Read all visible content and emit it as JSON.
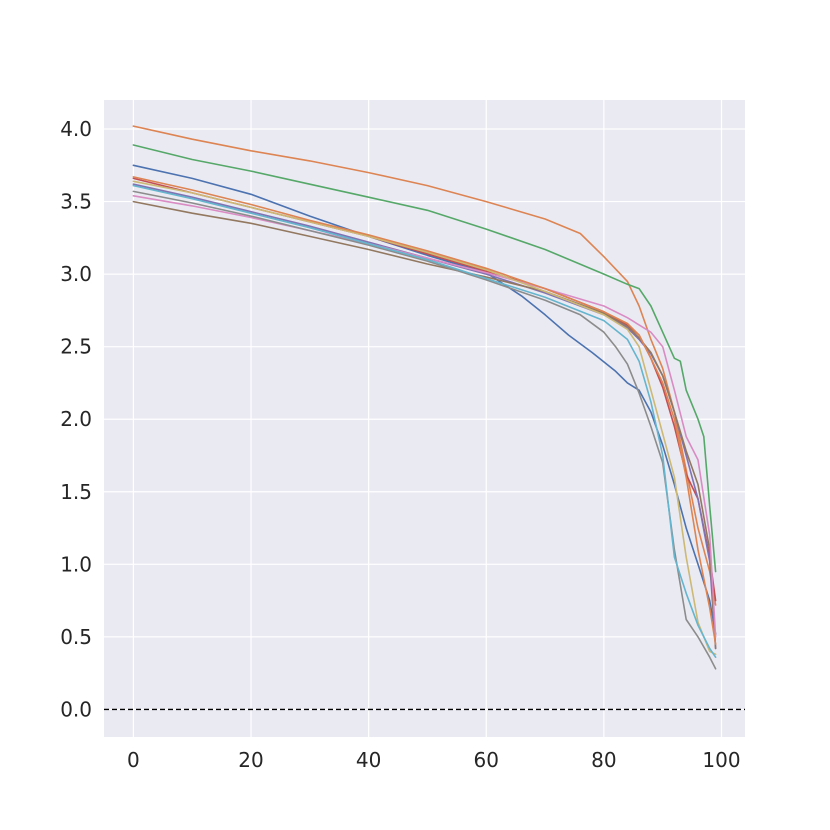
{
  "chart_data": {
    "type": "line",
    "title": "",
    "xlabel": "",
    "ylabel": "",
    "xlim": [
      -5,
      104
    ],
    "ylim": [
      -0.19,
      4.2
    ],
    "xticks": [
      0,
      20,
      40,
      60,
      80,
      100
    ],
    "yticks": [
      0.0,
      0.5,
      1.0,
      1.5,
      2.0,
      2.5,
      3.0,
      3.5,
      4.0
    ],
    "xtick_labels": [
      "0",
      "20",
      "40",
      "60",
      "80",
      "100"
    ],
    "ytick_labels": [
      "0.0",
      "0.5",
      "1.0",
      "1.5",
      "2.0",
      "2.5",
      "3.0",
      "3.5",
      "4.0"
    ],
    "grid": true,
    "background_color": "#eaeaf2",
    "reference_line": {
      "y": 0.0,
      "style": "dashed",
      "color": "#000000"
    },
    "series": [
      {
        "color": "#dd8452",
        "points": [
          [
            0,
            4.02
          ],
          [
            10,
            3.93
          ],
          [
            20,
            3.85
          ],
          [
            30,
            3.78
          ],
          [
            40,
            3.7
          ],
          [
            50,
            3.61
          ],
          [
            60,
            3.5
          ],
          [
            70,
            3.38
          ],
          [
            76,
            3.28
          ],
          [
            80,
            3.12
          ],
          [
            84,
            2.95
          ],
          [
            86,
            2.78
          ],
          [
            88,
            2.55
          ],
          [
            90,
            2.35
          ],
          [
            92,
            2.05
          ],
          [
            94,
            1.65
          ],
          [
            96,
            1.25
          ],
          [
            98,
            0.95
          ],
          [
            99,
            0.72
          ]
        ]
      },
      {
        "color": "#55a868",
        "points": [
          [
            0,
            3.89
          ],
          [
            10,
            3.79
          ],
          [
            20,
            3.71
          ],
          [
            30,
            3.62
          ],
          [
            40,
            3.53
          ],
          [
            50,
            3.44
          ],
          [
            60,
            3.31
          ],
          [
            70,
            3.17
          ],
          [
            80,
            3.0
          ],
          [
            84,
            2.93
          ],
          [
            86,
            2.9
          ],
          [
            88,
            2.78
          ],
          [
            90,
            2.6
          ],
          [
            92,
            2.42
          ],
          [
            93,
            2.4
          ],
          [
            94,
            2.2
          ],
          [
            96,
            2.0
          ],
          [
            97,
            1.88
          ],
          [
            98,
            1.4
          ],
          [
            99,
            0.95
          ]
        ]
      },
      {
        "color": "#4c72b0",
        "points": [
          [
            0,
            3.75
          ],
          [
            10,
            3.66
          ],
          [
            20,
            3.55
          ],
          [
            30,
            3.4
          ],
          [
            40,
            3.26
          ],
          [
            50,
            3.13
          ],
          [
            60,
            3.01
          ],
          [
            66,
            2.85
          ],
          [
            70,
            2.72
          ],
          [
            74,
            2.58
          ],
          [
            78,
            2.46
          ],
          [
            82,
            2.33
          ],
          [
            84,
            2.25
          ],
          [
            86,
            2.2
          ],
          [
            88,
            2.05
          ],
          [
            90,
            1.82
          ],
          [
            92,
            1.55
          ],
          [
            94,
            1.25
          ],
          [
            96,
            1.0
          ],
          [
            98,
            0.75
          ],
          [
            99,
            0.52
          ]
        ]
      },
      {
        "color": "#c44e52",
        "points": [
          [
            0,
            3.66
          ],
          [
            10,
            3.56
          ],
          [
            20,
            3.46
          ],
          [
            30,
            3.36
          ],
          [
            40,
            3.26
          ],
          [
            50,
            3.14
          ],
          [
            60,
            3.02
          ],
          [
            70,
            2.9
          ],
          [
            80,
            2.74
          ],
          [
            84,
            2.65
          ],
          [
            86,
            2.58
          ],
          [
            88,
            2.42
          ],
          [
            90,
            2.22
          ],
          [
            92,
            1.95
          ],
          [
            94,
            1.62
          ],
          [
            96,
            1.45
          ],
          [
            98,
            1.05
          ],
          [
            99,
            0.75
          ]
        ]
      },
      {
        "color": "#8172b3",
        "points": [
          [
            0,
            3.62
          ],
          [
            10,
            3.53
          ],
          [
            20,
            3.43
          ],
          [
            30,
            3.33
          ],
          [
            40,
            3.22
          ],
          [
            50,
            3.11
          ],
          [
            60,
            3.0
          ],
          [
            70,
            2.87
          ],
          [
            80,
            2.72
          ],
          [
            84,
            2.63
          ],
          [
            86,
            2.55
          ],
          [
            88,
            2.45
          ],
          [
            90,
            2.3
          ],
          [
            92,
            2.05
          ],
          [
            94,
            1.75
          ],
          [
            96,
            1.45
          ],
          [
            98,
            1.02
          ],
          [
            99,
            0.42
          ]
        ]
      },
      {
        "color": "#937860",
        "points": [
          [
            0,
            3.5
          ],
          [
            10,
            3.42
          ],
          [
            20,
            3.35
          ],
          [
            30,
            3.26
          ],
          [
            40,
            3.17
          ],
          [
            50,
            3.07
          ],
          [
            60,
            2.98
          ],
          [
            70,
            2.88
          ],
          [
            80,
            2.73
          ],
          [
            84,
            2.64
          ],
          [
            86,
            2.56
          ],
          [
            88,
            2.46
          ],
          [
            90,
            2.3
          ],
          [
            92,
            2.05
          ],
          [
            94,
            1.78
          ],
          [
            96,
            1.55
          ],
          [
            98,
            1.1
          ],
          [
            99,
            0.42
          ]
        ]
      },
      {
        "color": "#da8bc3",
        "points": [
          [
            0,
            3.54
          ],
          [
            10,
            3.47
          ],
          [
            20,
            3.39
          ],
          [
            30,
            3.3
          ],
          [
            40,
            3.21
          ],
          [
            50,
            3.11
          ],
          [
            60,
            3.01
          ],
          [
            70,
            2.9
          ],
          [
            80,
            2.78
          ],
          [
            84,
            2.7
          ],
          [
            86,
            2.65
          ],
          [
            88,
            2.6
          ],
          [
            90,
            2.5
          ],
          [
            92,
            2.2
          ],
          [
            94,
            1.88
          ],
          [
            96,
            1.72
          ],
          [
            98,
            1.2
          ],
          [
            99,
            0.5
          ]
        ]
      },
      {
        "color": "#8c8c8c",
        "points": [
          [
            0,
            3.57
          ],
          [
            10,
            3.49
          ],
          [
            20,
            3.4
          ],
          [
            30,
            3.3
          ],
          [
            40,
            3.2
          ],
          [
            50,
            3.09
          ],
          [
            60,
            2.96
          ],
          [
            70,
            2.82
          ],
          [
            76,
            2.72
          ],
          [
            80,
            2.6
          ],
          [
            82,
            2.5
          ],
          [
            84,
            2.38
          ],
          [
            86,
            2.18
          ],
          [
            88,
            1.95
          ],
          [
            90,
            1.7
          ],
          [
            92,
            1.1
          ],
          [
            94,
            0.62
          ],
          [
            96,
            0.5
          ],
          [
            98,
            0.36
          ],
          [
            99,
            0.28
          ]
        ]
      },
      {
        "color": "#ccb974",
        "points": [
          [
            0,
            3.64
          ],
          [
            10,
            3.56
          ],
          [
            20,
            3.46
          ],
          [
            30,
            3.36
          ],
          [
            40,
            3.26
          ],
          [
            50,
            3.15
          ],
          [
            60,
            3.03
          ],
          [
            70,
            2.88
          ],
          [
            80,
            2.72
          ],
          [
            84,
            2.62
          ],
          [
            86,
            2.5
          ],
          [
            88,
            2.2
          ],
          [
            90,
            1.9
          ],
          [
            92,
            1.6
          ],
          [
            94,
            1.05
          ],
          [
            96,
            0.6
          ],
          [
            98,
            0.4
          ],
          [
            99,
            0.38
          ]
        ]
      },
      {
        "color": "#64b5cd",
        "points": [
          [
            0,
            3.61
          ],
          [
            10,
            3.52
          ],
          [
            20,
            3.42
          ],
          [
            30,
            3.32
          ],
          [
            40,
            3.21
          ],
          [
            50,
            3.1
          ],
          [
            60,
            2.97
          ],
          [
            70,
            2.84
          ],
          [
            80,
            2.68
          ],
          [
            84,
            2.55
          ],
          [
            86,
            2.4
          ],
          [
            88,
            2.12
          ],
          [
            90,
            1.75
          ],
          [
            92,
            1.05
          ],
          [
            94,
            0.8
          ],
          [
            96,
            0.58
          ],
          [
            98,
            0.42
          ],
          [
            99,
            0.36
          ]
        ]
      },
      {
        "color": "#dd8452",
        "points": [
          [
            0,
            3.67
          ],
          [
            10,
            3.58
          ],
          [
            20,
            3.48
          ],
          [
            30,
            3.37
          ],
          [
            40,
            3.27
          ],
          [
            50,
            3.16
          ],
          [
            60,
            3.04
          ],
          [
            70,
            2.9
          ],
          [
            80,
            2.74
          ],
          [
            84,
            2.66
          ],
          [
            86,
            2.58
          ],
          [
            88,
            2.42
          ],
          [
            90,
            2.25
          ],
          [
            92,
            2.0
          ],
          [
            94,
            1.6
          ],
          [
            96,
            1.1
          ],
          [
            98,
            0.7
          ],
          [
            99,
            0.45
          ]
        ]
      }
    ]
  }
}
